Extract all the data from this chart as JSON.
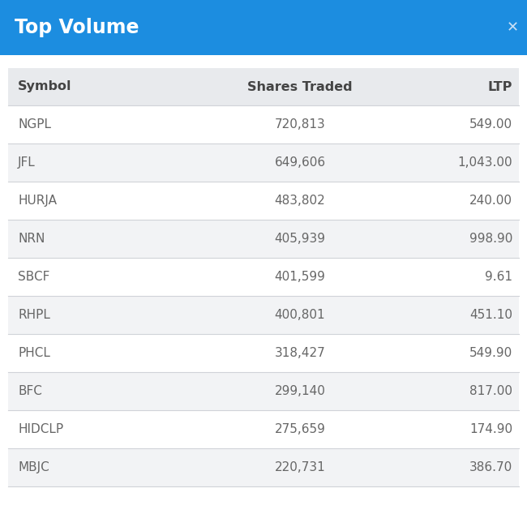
{
  "title": "Top Volume",
  "title_bg_color": "#1c8de0",
  "title_text_color": "#ffffff",
  "title_fontsize": 17,
  "header": [
    "Symbol",
    "Shares Traded",
    "LTP"
  ],
  "header_bg_color": "#e8eaed",
  "header_text_color": "#444444",
  "header_fontsize": 11.5,
  "rows": [
    [
      "NGPL",
      "720,813",
      "549.00"
    ],
    [
      "JFL",
      "649,606",
      "1,043.00"
    ],
    [
      "HURJA",
      "483,802",
      "240.00"
    ],
    [
      "NRN",
      "405,939",
      "998.90"
    ],
    [
      "SBCF",
      "401,599",
      "9.61"
    ],
    [
      "RHPL",
      "400,801",
      "451.10"
    ],
    [
      "PHCL",
      "318,427",
      "549.90"
    ],
    [
      "BFC",
      "299,140",
      "817.00"
    ],
    [
      "HIDCLP",
      "275,659",
      "174.90"
    ],
    [
      "MBJC",
      "220,731",
      "386.70"
    ]
  ],
  "row_bg_even": "#f2f3f5",
  "row_bg_odd": "#ffffff",
  "row_text_color": "#666666",
  "row_fontsize": 11,
  "outer_bg_color": "#ffffff",
  "divider_color": "#d0d3d8",
  "figsize": [
    6.5,
    6.55
  ],
  "dpi": 100
}
